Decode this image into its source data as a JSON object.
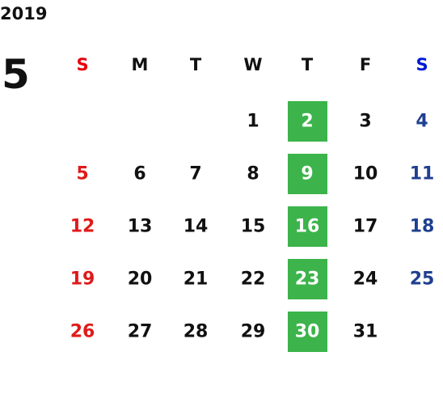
{
  "year": "2019",
  "month": "5",
  "weekdays": [
    "S",
    "M",
    "T",
    "W",
    "T",
    "F",
    "S"
  ],
  "weeks": [
    [
      null,
      null,
      null,
      "1",
      "2",
      "3",
      "4"
    ],
    [
      "5",
      "6",
      "7",
      "8",
      "9",
      "10",
      "11"
    ],
    [
      "12",
      "13",
      "14",
      "15",
      "16",
      "17",
      "18"
    ],
    [
      "19",
      "20",
      "21",
      "22",
      "23",
      "24",
      "25"
    ],
    [
      "26",
      "27",
      "28",
      "29",
      "30",
      "31",
      null
    ]
  ]
}
